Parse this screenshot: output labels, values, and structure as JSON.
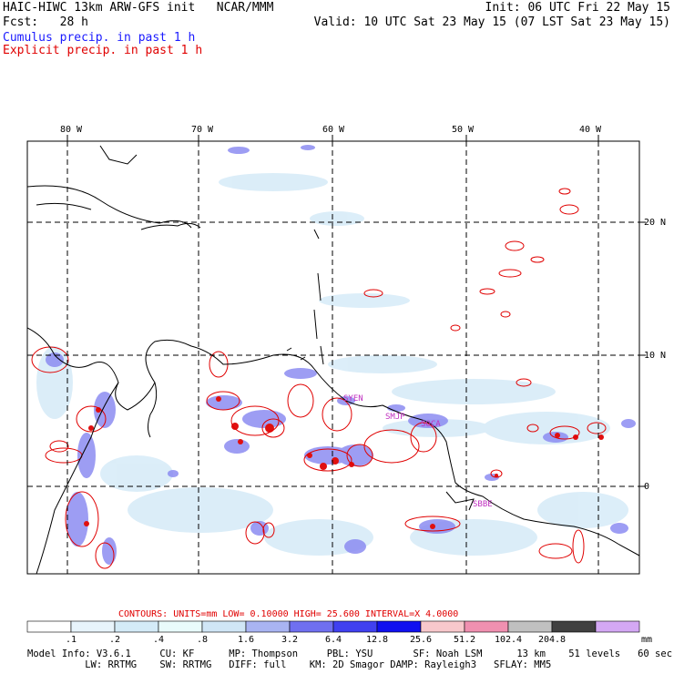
{
  "header": {
    "line1_left": "HAIC-HIWC 13km ARW-GFS init   NCAR/MMM",
    "line1_right": "Init: 06 UTC Fri 22 May 15",
    "line2_left": "Fcst:   28 h",
    "line2_right": "Valid: 10 UTC Sat 23 May 15 (07 LST Sat 23 May 15)",
    "line3": "Cumulus precip. in past 1 h",
    "line4": "Explicit precip. in past 1 h"
  },
  "colors": {
    "cumulus": "#1a1aff",
    "explicit": "#e00000",
    "land": "#ffffff",
    "contour": "#e00000"
  },
  "map": {
    "lon_labels": [
      "80 W",
      "70 W",
      "60 W",
      "50 W",
      "40 W"
    ],
    "lat_labels": [
      "20 N",
      "10 N",
      "0"
    ],
    "station_labels": [
      "SYEN",
      "SMJP",
      "SOCA",
      "SBBE"
    ]
  },
  "contours_line": {
    "label": "CONTOURS:  UNITS=mm  LOW= 0.10000     HIGH=  25.600     INTERVAL=X  4.0000"
  },
  "colorbar": {
    "unit": "mm",
    "ticks": [
      ".1",
      ".2",
      ".4",
      ".8",
      "1.6",
      "3.2",
      "6.4",
      "12.8",
      "25.6",
      "51.2",
      "102.4",
      "204.8"
    ],
    "colors": [
      "#ffffff",
      "#e8f4fb",
      "#d4ebf7",
      "#e9fbfb",
      "#d0e6f6",
      "#a9b4f2",
      "#6f6ff0",
      "#4040f0",
      "#1010f0",
      "#f8c8cc",
      "#f090b0",
      "#c0c0c0",
      "#404040",
      "#d4a8f4"
    ]
  },
  "footer": {
    "line1": "Model Info: V3.6.1     CU: KF      MP: Thompson     PBL: YSU       SF: Noah LSM      13 km    51 levels   60 sec",
    "line2": "          LW: RRTMG    SW: RRTMG   DIFF: full    KM: 2D Smagor DAMP: Rayleigh3   SFLAY: MM5"
  }
}
